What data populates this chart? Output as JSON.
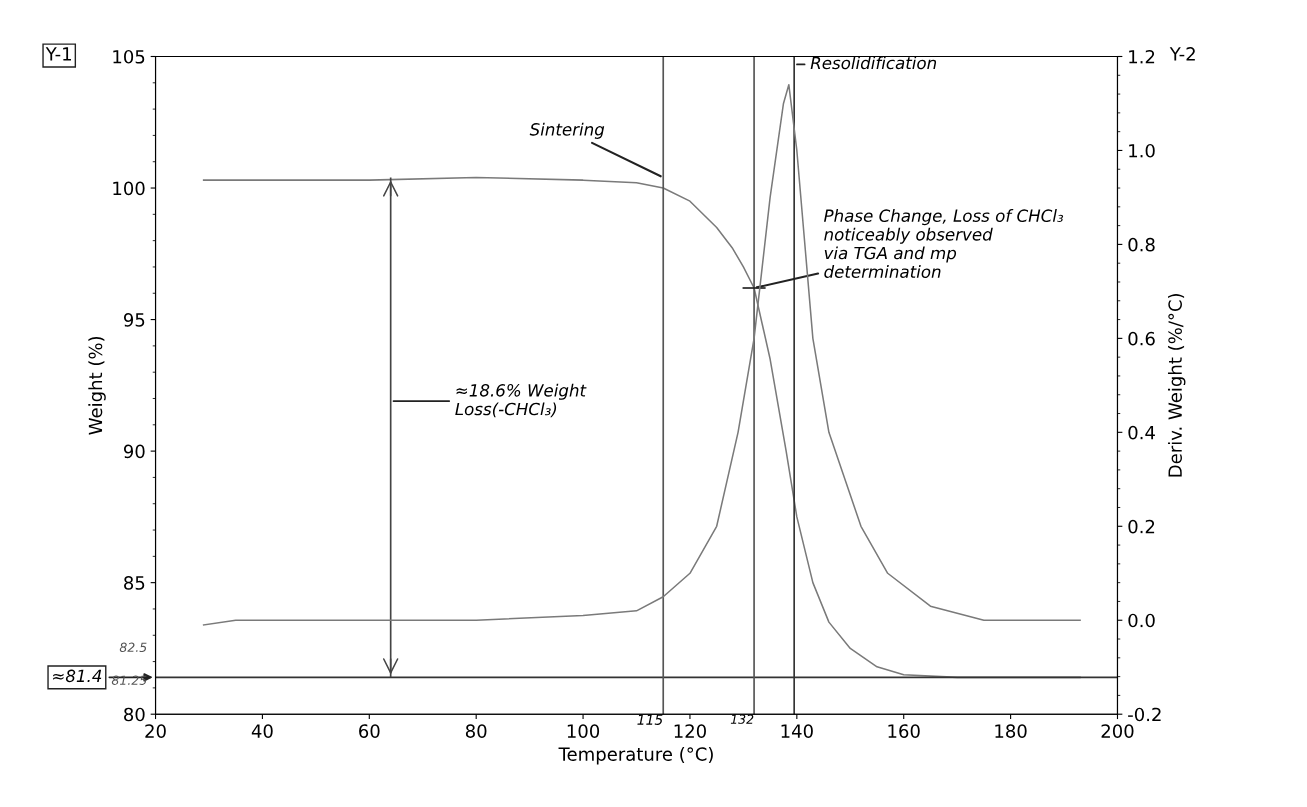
{
  "chart_data": {
    "type": "line",
    "xlabel": "Temperature (°C)",
    "ylabel": "Weight (%)",
    "y2label": "Deriv. Weight (%/°C)",
    "xlim": [
      20,
      200
    ],
    "xticks": [
      20,
      40,
      60,
      80,
      100,
      120,
      140,
      160,
      180,
      200
    ],
    "ylim": [
      80,
      105
    ],
    "yticks": [
      80,
      85,
      90,
      95,
      100,
      105
    ],
    "y2lim": [
      -0.2,
      1.2
    ],
    "y2ticks": [
      {
        "value": -0.2,
        "label": "-0.2"
      },
      {
        "value": 0,
        "label": "0.0"
      },
      {
        "value": 0.2,
        "label": "0.2"
      },
      {
        "value": 0.4,
        "label": "0.4"
      },
      {
        "value": 0.6,
        "label": "0.6"
      },
      {
        "value": 0.8,
        "label": "0.8"
      },
      {
        "value": 1.0,
        "label": "1.0"
      },
      {
        "value": 1.2,
        "label": "1.2"
      }
    ],
    "grid": false,
    "legend": false,
    "marker": "none",
    "line_style": "solid",
    "series": [
      {
        "color": "#7a7a7a",
        "x": [
          29,
          40,
          60,
          80,
          100,
          110,
          115,
          120,
          125,
          128,
          130,
          132,
          135,
          138,
          140,
          143,
          146,
          150,
          155,
          160,
          170,
          180,
          193
        ],
        "values": [
          100.3,
          100.3,
          100.3,
          100.4,
          100.3,
          100.2,
          100.0,
          99.5,
          98.5,
          97.7,
          97.0,
          96.2,
          93.5,
          90.0,
          87.5,
          85.0,
          83.5,
          82.5,
          81.8,
          81.5,
          81.4,
          81.4,
          81.4
        ]
      },
      {
        "color": "#7a7a7a",
        "axis": "y2",
        "x": [
          29,
          35,
          40,
          60,
          80,
          100,
          110,
          115,
          120,
          125,
          129,
          132,
          135,
          137.5,
          138.5,
          140,
          143,
          146,
          152,
          157,
          165,
          175,
          193
        ],
        "values": [
          -0.01,
          0.0,
          0.0,
          0.0,
          0.0,
          0.01,
          0.02,
          0.05,
          0.1,
          0.2,
          0.4,
          0.6,
          0.9,
          1.1,
          1.14,
          1.0,
          0.6,
          0.4,
          0.2,
          0.1,
          0.03,
          0.0,
          0.0
        ]
      }
    ],
    "ref_lines": [
      {
        "axis": "x",
        "value": 115,
        "label": "Sintering",
        "color": "#555555"
      },
      {
        "axis": "x",
        "value": 132,
        "label": "132",
        "color": "#555555"
      },
      {
        "axis": "x",
        "value": 139.5,
        "label": "Resolidification",
        "color": "#333333"
      },
      {
        "axis": "x",
        "value": 64,
        "label": "≈18.6% Weight\nLoss(-CHCl₃)",
        "color": "#444444"
      },
      {
        "axis": "y",
        "value": 81.4,
        "label": "≈81.4",
        "color": "#333333"
      }
    ],
    "annotations": [
      "Y-1",
      "Y-2",
      {
        "text": "Phase Change, Loss of CHCl₃\nnoticeably observed\nvia TGA and mp\ndetermination",
        "x": 132,
        "y": 96.2
      },
      {
        "text": "115",
        "x": 115,
        "y": 80
      },
      "82.5",
      "81.25"
    ]
  }
}
